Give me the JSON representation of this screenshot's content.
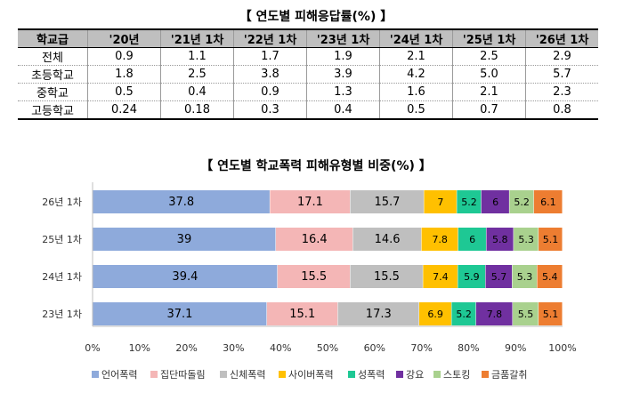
{
  "table_title": "【 연도별 피해응답률(%) 】",
  "table": {
    "headers": [
      "학교급",
      "'20년",
      "'21년 1차",
      "'22년 1차",
      "'23년 1차",
      "'24년 1차",
      "'25년 1차",
      "'26년 1차"
    ],
    "rows": [
      {
        "label": "전체",
        "values": [
          "0.9",
          "1.1",
          "1.7",
          "1.9",
          "2.1",
          "2.5",
          "2.9"
        ]
      },
      {
        "label": "초등학교",
        "values": [
          "1.8",
          "2.5",
          "3.8",
          "3.9",
          "4.2",
          "5.0",
          "5.7"
        ]
      },
      {
        "label": "중학교",
        "values": [
          "0.5",
          "0.4",
          "0.9",
          "1.3",
          "1.6",
          "2.1",
          "2.3"
        ]
      },
      {
        "label": "고등학교",
        "values": [
          "0.24",
          "0.18",
          "0.3",
          "0.4",
          "0.5",
          "0.7",
          "0.8"
        ]
      }
    ]
  },
  "chart_data": {
    "type": "bar",
    "orientation": "horizontal",
    "stacked": "percent",
    "title": "【 연도별 학교폭력 피해유형별 비중(%) 】",
    "categories": [
      "26년 1차",
      "25년 1차",
      "24년 1차",
      "23년 1차"
    ],
    "series": [
      {
        "name": "언어폭력",
        "color": "#8eaadb",
        "values": [
          37.8,
          39,
          39.4,
          37.1
        ]
      },
      {
        "name": "집단따돌림",
        "color": "#f4b6b6",
        "values": [
          17.1,
          16.4,
          15.5,
          15.1
        ]
      },
      {
        "name": "신체폭력",
        "color": "#bfbfbf",
        "values": [
          15.7,
          14.6,
          15.5,
          17.3
        ]
      },
      {
        "name": "사이버폭력",
        "color": "#ffc000",
        "values": [
          7,
          7.8,
          7.4,
          6.9
        ]
      },
      {
        "name": "성폭력",
        "color": "#1ec894",
        "values": [
          5.2,
          6,
          5.9,
          5.2
        ]
      },
      {
        "name": "강요",
        "color": "#7030a0",
        "values": [
          6,
          5.8,
          5.7,
          7.8
        ]
      },
      {
        "name": "스토킹",
        "color": "#a9d18e",
        "values": [
          5.2,
          5.3,
          5.3,
          5.5
        ]
      },
      {
        "name": "금품갈취",
        "color": "#ed7d31",
        "values": [
          6.1,
          5.1,
          5.4,
          5.1
        ]
      }
    ],
    "data_labels": [
      [
        "37.8",
        "17.1",
        "15.7",
        "7",
        "5.2",
        "6",
        "5.2",
        "6.1"
      ],
      [
        "39",
        "16.4",
        "14.6",
        "7.8",
        "6",
        "5.8",
        "5.3",
        "5.1"
      ],
      [
        "39.4",
        "15.5",
        "15.5",
        "7.4",
        "5.9",
        "5.7",
        "5.3",
        "5.4"
      ],
      [
        "37.1",
        "15.1",
        "17.3",
        "6.9",
        "5.2",
        "7.8",
        "5.5",
        "5.1"
      ]
    ],
    "xlim": [
      0,
      100
    ],
    "x_ticks": [
      "0%",
      "10%",
      "20%",
      "30%",
      "40%",
      "50%",
      "60%",
      "70%",
      "80%",
      "90%",
      "100%"
    ],
    "grid": false,
    "legend_position": "bottom"
  }
}
